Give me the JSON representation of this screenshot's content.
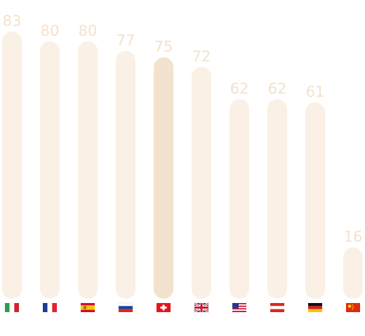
{
  "chart_data": {
    "type": "bar",
    "categories": [
      "Italy",
      "France",
      "Spain",
      "Russia",
      "Switzerland",
      "United Kingdom",
      "United States",
      "Austria",
      "Germany",
      "China"
    ],
    "flag_icons": [
      "italy-flag-icon",
      "france-flag-icon",
      "spain-flag-icon",
      "russia-flag-icon",
      "switzerland-flag-icon",
      "uk-flag-icon",
      "usa-flag-icon",
      "austria-flag-icon",
      "germany-flag-icon",
      "china-flag-icon"
    ],
    "values": [
      83,
      80,
      80,
      77,
      75,
      72,
      62,
      62,
      61,
      16
    ],
    "highlight_index": 4,
    "title": "",
    "xlabel": "",
    "ylabel": "",
    "ylim": [
      0,
      83
    ]
  },
  "colors": {
    "bar": "#faf0e5",
    "bar_highlight": "#f3e2cd",
    "label": "#f3e2cd"
  }
}
